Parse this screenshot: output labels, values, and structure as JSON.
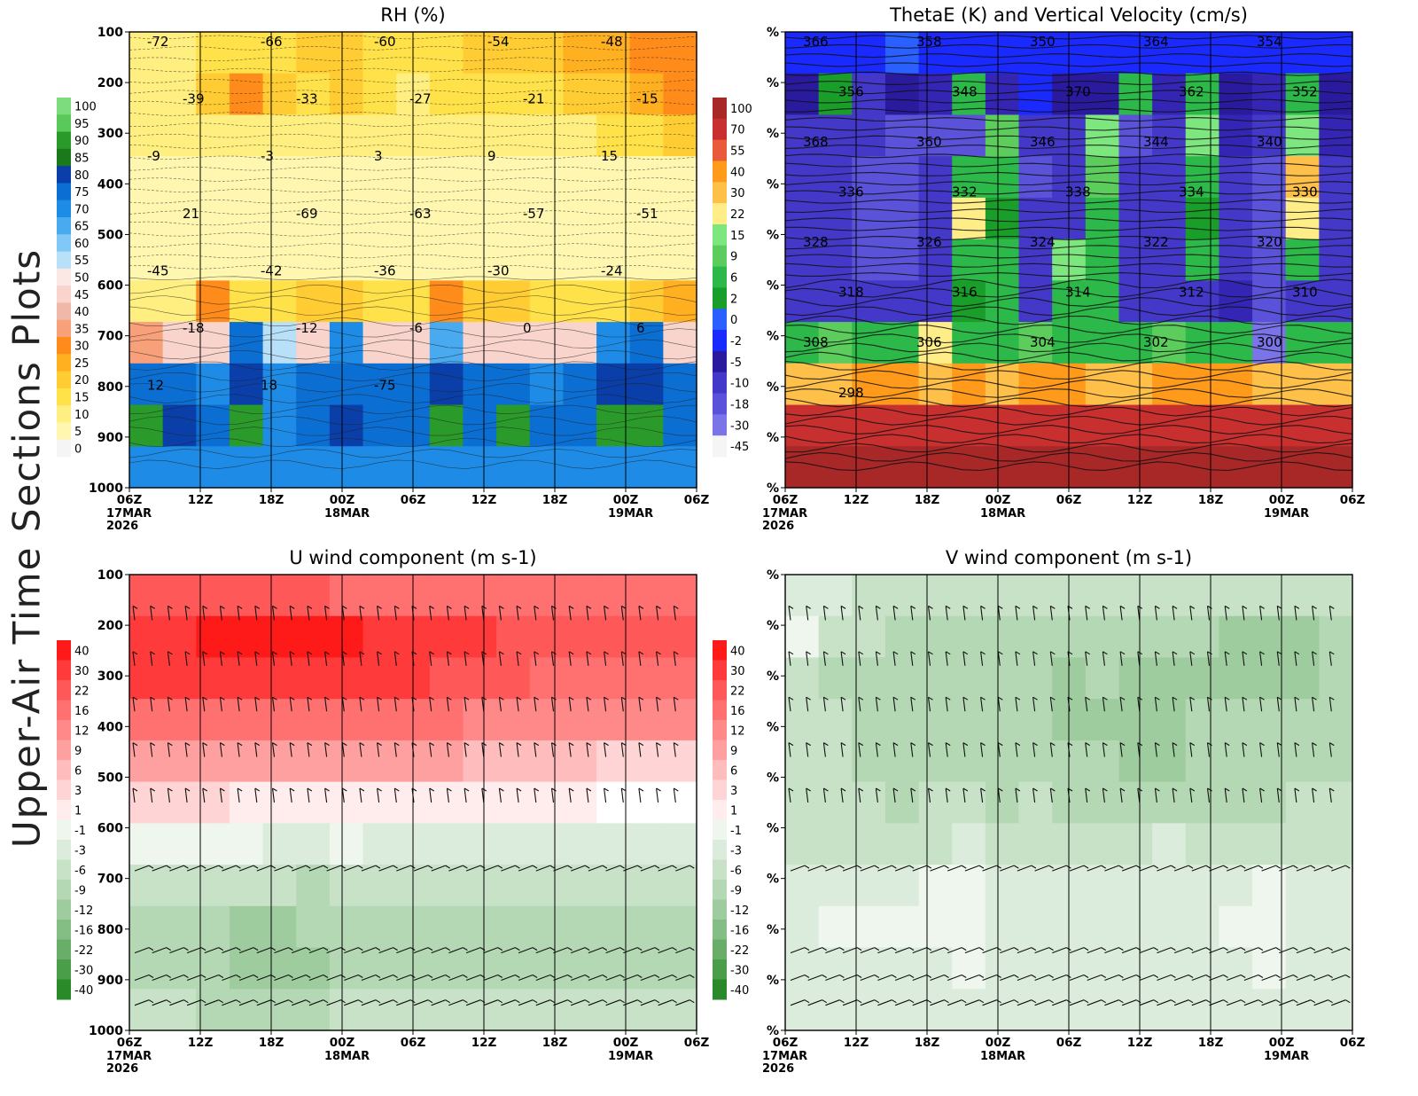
{
  "page": {
    "side_title": "Upper-Air Time Sections Plots"
  },
  "time_axis": {
    "ticks": [
      "06Z",
      "12Z",
      "18Z",
      "00Z",
      "06Z",
      "12Z",
      "18Z",
      "00Z",
      "06Z"
    ],
    "date_labels": [
      {
        "tick_index": 0,
        "lines": [
          "17MAR",
          "2026"
        ]
      },
      {
        "tick_index": 3,
        "lines": [
          "18MAR"
        ]
      },
      {
        "tick_index": 7,
        "lines": [
          "19MAR"
        ]
      }
    ]
  },
  "pressure_axis": {
    "levels": [
      "100",
      "200",
      "300",
      "400",
      "500",
      "600",
      "700",
      "800",
      "900",
      "1000"
    ]
  },
  "palettes": {
    "rh": [
      "#f5f5f5",
      "#fff7b0",
      "#ffef80",
      "#ffe14a",
      "#ffcc33",
      "#ffb020",
      "#ff8c1a",
      "#f7a07a",
      "#f0b8a8",
      "#f8d4cc",
      "#fbe8e4",
      "#b8e0f8",
      "#80c8f5",
      "#4aaaf0",
      "#1e8ce6",
      "#0a6ed2",
      "#0a3ea8",
      "#1a7a1a",
      "#2a9a2a",
      "#5ac85a",
      "#7ddc7d"
    ],
    "theta_e": [
      "#f5f5f5",
      "#7a74e8",
      "#5a52d8",
      "#4338c8",
      "#3425b5",
      "#2a1a9e",
      "#1a2aff",
      "#2a60ff",
      "#1a9e2a",
      "#2db84a",
      "#5ccc5c",
      "#7ee67e",
      "#ffee88",
      "#ffdc6a",
      "#ffc04a",
      "#ff9a1a",
      "#e85a3a",
      "#c83030",
      "#a82828"
    ],
    "u": [
      "#2a8a2a",
      "#4a9e4a",
      "#68ae68",
      "#84be84",
      "#9ecc9e",
      "#b4d8b4",
      "#c8e2c8",
      "#dcecdc",
      "#eef6ee",
      "#ffffff",
      "#ffecec",
      "#ffd4d4",
      "#ffbcbc",
      "#ffa0a0",
      "#ff8888",
      "#ff7070",
      "#ff5858",
      "#ff3a3a",
      "#ff1a1a"
    ],
    "v": [
      "#2a8a2a",
      "#4a9e4a",
      "#68ae68",
      "#84be84",
      "#9ecc9e",
      "#b4d8b4",
      "#c8e2c8",
      "#dcecdc",
      "#eef6ee",
      "#ffffff",
      "#ffecec",
      "#ffd4d4",
      "#ffbcbc",
      "#ffa0a0",
      "#ff8888",
      "#ff7070",
      "#ff5858",
      "#ff3a3a",
      "#ff1a1a"
    ]
  },
  "chart_data": [
    {
      "id": "rh",
      "type": "heatmap",
      "title": "RH (%)",
      "xlabel": "",
      "ylabel": "",
      "y_axis_labels": [
        "100",
        "200",
        "300",
        "400",
        "500",
        "600",
        "700",
        "800",
        "900",
        "1000"
      ],
      "colorbar_labels": [
        "100",
        "95",
        "90",
        "85",
        "80",
        "75",
        "70",
        "65",
        "60",
        "55",
        "50",
        "45",
        "40",
        "35",
        "30",
        "25",
        "20",
        "15",
        "10",
        "5",
        "0"
      ],
      "contour_labels": [
        "-72",
        "-66",
        "-60",
        "-54",
        "-48",
        "-39",
        "-33",
        "-27",
        "-21",
        "-15",
        "-9",
        "-3",
        "3",
        "9",
        "15",
        "21",
        "-69",
        "-63",
        "-57",
        "-51",
        "-45",
        "-42",
        "-36",
        "-30",
        "-24",
        "-18",
        "-12",
        "-6",
        "0",
        "6",
        "12",
        "18",
        "-75"
      ],
      "rows": [
        [
          2,
          2,
          3,
          3,
          3,
          4,
          4,
          3,
          3,
          3,
          4,
          4,
          4,
          5,
          5,
          6,
          6
        ],
        [
          2,
          2,
          4,
          6,
          4,
          3,
          4,
          3,
          2,
          3,
          3,
          3,
          3,
          4,
          4,
          5,
          6
        ],
        [
          2,
          2,
          2,
          2,
          2,
          2,
          2,
          2,
          2,
          2,
          2,
          2,
          2,
          2,
          3,
          3,
          4
        ],
        [
          1,
          1,
          1,
          1,
          1,
          1,
          1,
          1,
          1,
          1,
          1,
          1,
          1,
          1,
          1,
          1,
          1
        ],
        [
          1,
          1,
          1,
          1,
          1,
          1,
          1,
          1,
          1,
          1,
          1,
          1,
          1,
          1,
          1,
          1,
          1
        ],
        [
          1,
          1,
          1,
          1,
          1,
          1,
          1,
          1,
          1,
          1,
          1,
          1,
          1,
          1,
          1,
          1,
          1
        ],
        [
          2,
          2,
          6,
          3,
          3,
          4,
          4,
          3,
          3,
          6,
          4,
          4,
          3,
          3,
          3,
          4,
          5
        ],
        [
          7,
          9,
          9,
          15,
          11,
          9,
          14,
          9,
          9,
          13,
          9,
          9,
          9,
          9,
          14,
          15,
          9
        ],
        [
          15,
          15,
          14,
          16,
          14,
          15,
          15,
          15,
          15,
          16,
          15,
          15,
          14,
          15,
          16,
          16,
          15
        ],
        [
          18,
          16,
          15,
          18,
          14,
          15,
          16,
          15,
          15,
          18,
          15,
          18,
          15,
          15,
          18,
          18,
          15
        ],
        [
          14,
          14,
          14,
          14,
          14,
          14,
          14,
          14,
          14,
          14,
          14,
          14,
          14,
          14,
          14,
          14,
          14
        ]
      ]
    },
    {
      "id": "theta_e",
      "type": "heatmap",
      "title": "ThetaE (K) and Vertical Velocity (cm/s)",
      "xlabel": "",
      "ylabel": "",
      "y_axis_labels": [
        "%",
        "%",
        "%",
        "%",
        "%",
        "%",
        "%",
        "%",
        "%",
        "%"
      ],
      "colorbar_labels": [
        "100",
        "70",
        "55",
        "40",
        "30",
        "22",
        "15",
        "9",
        "6",
        "2",
        "0",
        "-2",
        "-5",
        "-10",
        "-18",
        "-30",
        "-45"
      ],
      "contour_labels": [
        "366",
        "358",
        "350",
        "364",
        "354",
        "356",
        "348",
        "370",
        "362",
        "352",
        "368",
        "360",
        "346",
        "344",
        "340",
        "336",
        "332",
        "338",
        "334",
        "330",
        "328",
        "326",
        "324",
        "322",
        "320",
        "318",
        "316",
        "314",
        "312",
        "310",
        "308",
        "306",
        "304",
        "302",
        "300",
        "298"
      ],
      "rows": [
        [
          6,
          6,
          6,
          7,
          6,
          6,
          6,
          6,
          6,
          6,
          6,
          6,
          6,
          6,
          6,
          6,
          6
        ],
        [
          5,
          8,
          3,
          5,
          4,
          9,
          4,
          6,
          5,
          5,
          9,
          4,
          9,
          5,
          4,
          9,
          5
        ],
        [
          3,
          3,
          3,
          2,
          2,
          2,
          10,
          3,
          3,
          11,
          2,
          3,
          11,
          4,
          3,
          11,
          4
        ],
        [
          3,
          3,
          2,
          2,
          3,
          9,
          9,
          2,
          3,
          10,
          3,
          3,
          9,
          3,
          2,
          14,
          3
        ],
        [
          3,
          3,
          2,
          2,
          3,
          12,
          8,
          3,
          3,
          9,
          3,
          3,
          8,
          3,
          2,
          12,
          3
        ],
        [
          3,
          3,
          2,
          2,
          3,
          9,
          9,
          3,
          11,
          9,
          3,
          3,
          9,
          3,
          2,
          9,
          3
        ],
        [
          3,
          3,
          3,
          3,
          3,
          8,
          9,
          3,
          9,
          9,
          3,
          3,
          3,
          4,
          2,
          3,
          3
        ],
        [
          9,
          10,
          9,
          9,
          12,
          9,
          9,
          10,
          9,
          9,
          9,
          10,
          9,
          9,
          1,
          9,
          9
        ],
        [
          14,
          14,
          15,
          15,
          14,
          15,
          14,
          15,
          15,
          14,
          14,
          15,
          15,
          15,
          14,
          14,
          14
        ],
        [
          17,
          17,
          17,
          17,
          17,
          17,
          17,
          17,
          17,
          17,
          17,
          17,
          17,
          17,
          17,
          17,
          17
        ],
        [
          18,
          18,
          18,
          18,
          18,
          18,
          18,
          18,
          18,
          18,
          18,
          18,
          18,
          18,
          18,
          18,
          18
        ]
      ]
    },
    {
      "id": "u",
      "type": "heatmap",
      "title": "U wind component (m s-1)",
      "xlabel": "",
      "ylabel": "",
      "y_axis_labels": [
        "100",
        "200",
        "300",
        "400",
        "500",
        "600",
        "700",
        "800",
        "900",
        "1000"
      ],
      "colorbar_labels": [
        "40",
        "30",
        "22",
        "16",
        "12",
        "9",
        "6",
        "3",
        "1",
        "-1",
        "-3",
        "-6",
        "-9",
        "-12",
        "-16",
        "-22",
        "-30",
        "-40"
      ],
      "rows": [
        [
          16,
          16,
          16,
          16,
          16,
          16,
          15,
          15,
          15,
          15,
          15,
          15,
          15,
          15,
          15,
          15,
          15
        ],
        [
          17,
          17,
          18,
          18,
          18,
          18,
          18,
          17,
          17,
          17,
          17,
          16,
          16,
          16,
          16,
          16,
          16
        ],
        [
          17,
          17,
          17,
          17,
          17,
          17,
          17,
          17,
          17,
          16,
          16,
          16,
          15,
          15,
          15,
          15,
          15
        ],
        [
          15,
          15,
          15,
          15,
          15,
          15,
          15,
          15,
          15,
          15,
          14,
          14,
          14,
          14,
          14,
          14,
          14
        ],
        [
          13,
          13,
          13,
          13,
          13,
          13,
          13,
          13,
          13,
          13,
          12,
          12,
          12,
          12,
          11,
          11,
          11
        ],
        [
          11,
          11,
          11,
          10,
          10,
          10,
          10,
          10,
          10,
          10,
          10,
          10,
          10,
          10,
          9,
          9,
          9
        ],
        [
          8,
          8,
          8,
          8,
          7,
          7,
          8,
          7,
          7,
          7,
          7,
          7,
          7,
          7,
          7,
          7,
          7
        ],
        [
          6,
          6,
          6,
          6,
          6,
          5,
          6,
          6,
          6,
          6,
          6,
          6,
          6,
          6,
          6,
          6,
          6
        ],
        [
          5,
          5,
          5,
          4,
          4,
          5,
          5,
          5,
          5,
          5,
          5,
          5,
          5,
          5,
          5,
          5,
          5
        ],
        [
          5,
          5,
          5,
          4,
          4,
          4,
          5,
          5,
          5,
          5,
          5,
          5,
          5,
          5,
          5,
          5,
          5
        ],
        [
          6,
          6,
          5,
          5,
          5,
          5,
          6,
          6,
          6,
          6,
          6,
          6,
          6,
          6,
          6,
          6,
          6
        ]
      ]
    },
    {
      "id": "v",
      "type": "heatmap",
      "title": "V wind component (m s-1)",
      "xlabel": "",
      "ylabel": "",
      "y_axis_labels": [
        "%",
        "%",
        "%",
        "%",
        "%",
        "%",
        "%",
        "%",
        "%",
        "%"
      ],
      "colorbar_labels": [
        "40",
        "30",
        "22",
        "16",
        "12",
        "9",
        "6",
        "3",
        "1",
        "-1",
        "-3",
        "-6",
        "-9",
        "-12",
        "-16",
        "-22",
        "-30",
        "-40"
      ],
      "rows": [
        [
          7,
          7,
          6,
          6,
          6,
          6,
          6,
          6,
          6,
          6,
          6,
          6,
          6,
          6,
          6,
          6,
          6
        ],
        [
          8,
          6,
          6,
          5,
          5,
          5,
          5,
          5,
          5,
          5,
          5,
          5,
          5,
          4,
          4,
          4,
          5
        ],
        [
          6,
          5,
          5,
          5,
          5,
          5,
          5,
          5,
          4,
          5,
          4,
          4,
          4,
          4,
          4,
          4,
          5
        ],
        [
          6,
          6,
          5,
          5,
          5,
          5,
          5,
          5,
          4,
          4,
          4,
          4,
          5,
          5,
          5,
          5,
          5
        ],
        [
          6,
          6,
          5,
          5,
          5,
          5,
          5,
          5,
          5,
          5,
          4,
          4,
          5,
          5,
          5,
          5,
          5
        ],
        [
          6,
          6,
          6,
          5,
          6,
          6,
          5,
          6,
          5,
          5,
          5,
          5,
          5,
          5,
          5,
          6,
          6
        ],
        [
          6,
          6,
          6,
          6,
          6,
          7,
          6,
          6,
          6,
          6,
          6,
          7,
          6,
          6,
          6,
          6,
          6
        ],
        [
          7,
          7,
          7,
          7,
          8,
          8,
          7,
          7,
          7,
          7,
          7,
          7,
          7,
          7,
          8,
          7,
          7
        ],
        [
          7,
          8,
          8,
          8,
          8,
          8,
          7,
          7,
          7,
          7,
          7,
          7,
          7,
          8,
          8,
          7,
          7
        ],
        [
          7,
          7,
          7,
          7,
          7,
          8,
          7,
          7,
          7,
          7,
          7,
          7,
          7,
          7,
          8,
          7,
          7
        ],
        [
          7,
          7,
          7,
          7,
          7,
          7,
          7,
          7,
          7,
          7,
          7,
          7,
          7,
          7,
          7,
          7,
          7
        ]
      ]
    }
  ]
}
